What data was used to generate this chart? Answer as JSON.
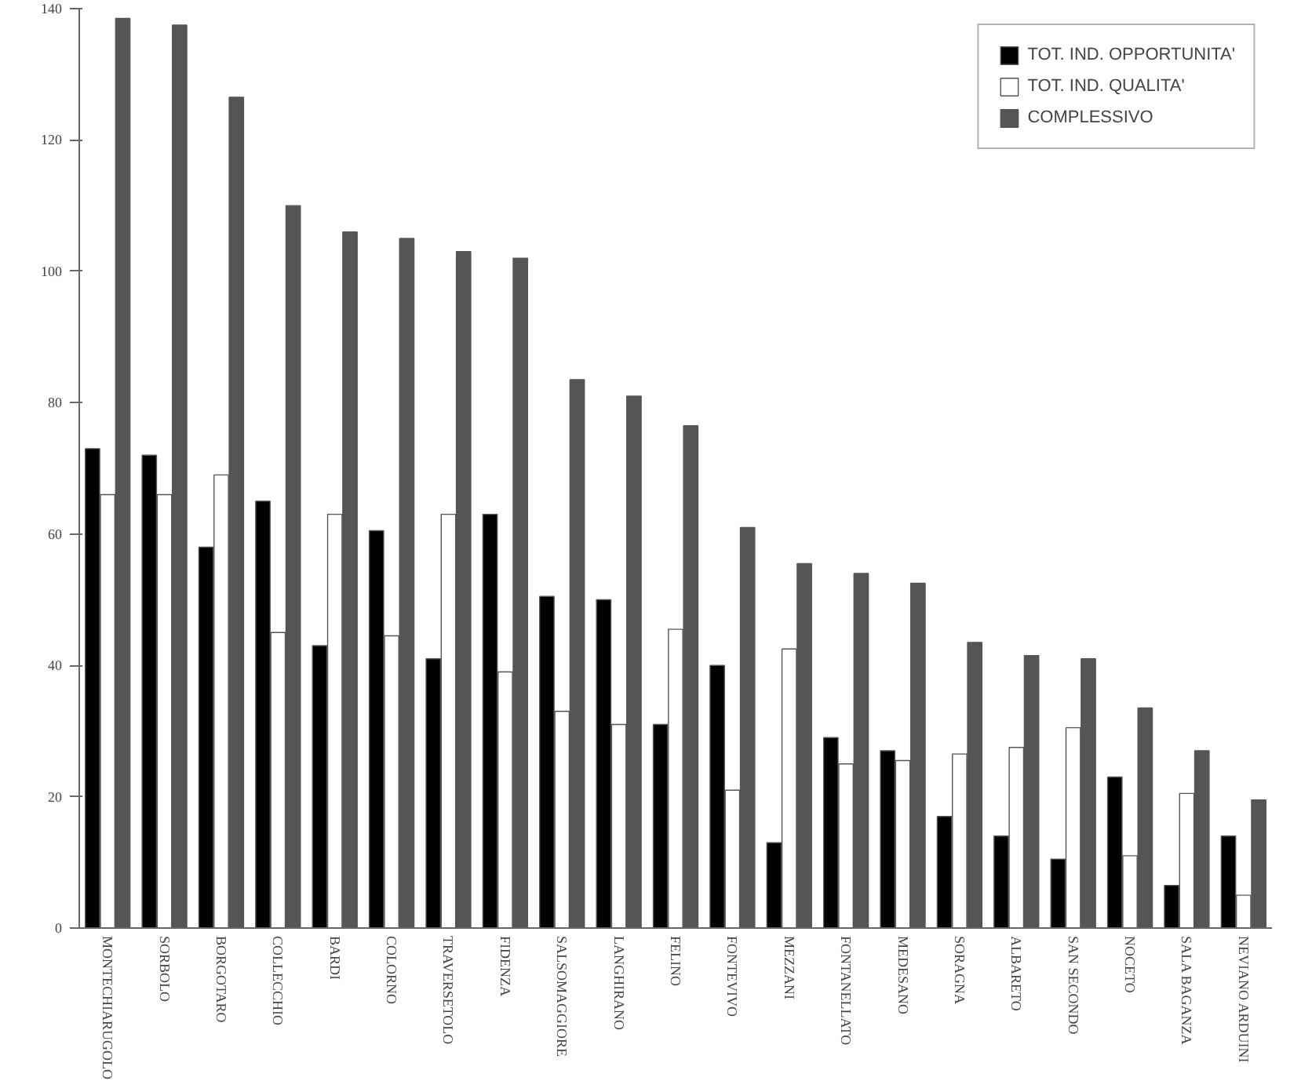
{
  "chart_data": {
    "type": "bar",
    "categories": [
      "MONTECHIARUGOLO",
      "SORBOLO",
      "BORGOTARO",
      "COLLECCHIO",
      "BARDI",
      "COLORNO",
      "TRAVERSETOLO",
      "FIDENZA",
      "SALSOMAGGIORE",
      "LANGHIRANO",
      "FELINO",
      "FONTEVIVO",
      "MEZZANI",
      "FONTANELLATO",
      "MEDESANO",
      "SORAGNA",
      "ALBARETO",
      "SAN SECONDO",
      "NOCETO",
      "SALA BAGANZA",
      "NEVIANO ARDUINI"
    ],
    "series": [
      {
        "name": "TOT. IND. OPPORTUNITA'",
        "color": "#000000",
        "values": [
          73,
          72,
          58,
          65,
          43,
          60.5,
          41,
          63,
          50.5,
          50,
          31,
          40,
          13,
          29,
          27,
          17,
          14,
          10.5,
          23,
          6.5,
          14
        ]
      },
      {
        "name": "TOT. IND. QUALITA'",
        "color": "#ffffff",
        "values": [
          66,
          66,
          69,
          45,
          63,
          44.5,
          63,
          39,
          33,
          31,
          45.5,
          21,
          42.5,
          25,
          25.5,
          26.5,
          27.5,
          30.5,
          11,
          20.5,
          5
        ]
      },
      {
        "name": "COMPLESSIVO",
        "color": "#555555",
        "values": [
          138.5,
          137.5,
          126.5,
          110,
          106,
          105,
          103,
          102,
          83.5,
          81,
          76.5,
          61,
          55.5,
          54,
          52.5,
          43.5,
          41.5,
          41,
          33.5,
          27,
          19.5
        ]
      }
    ],
    "ylim": [
      0,
      140
    ],
    "yticks": [
      0,
      20,
      40,
      60,
      80,
      100,
      120,
      140
    ],
    "grid": false,
    "legend": "top right"
  }
}
